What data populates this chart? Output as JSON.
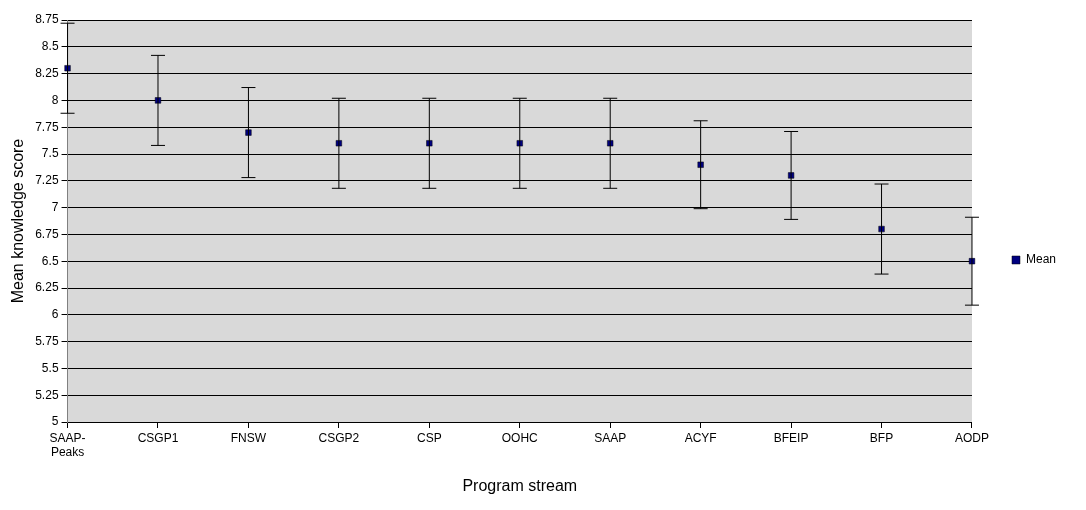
{
  "chart_data": {
    "type": "scatter",
    "xlabel": "Program stream",
    "ylabel": "Mean knowledge score",
    "categories": [
      "SAAP-Peaks",
      "CSGP1",
      "FNSW",
      "CSGP2",
      "CSP",
      "OOHC",
      "SAAP",
      "ACYF",
      "BFEIP",
      "BFP",
      "AODP"
    ],
    "series": [
      {
        "name": "Mean",
        "color": "#000080",
        "values": [
          8.3,
          8.0,
          7.7,
          7.6,
          7.6,
          7.6,
          7.6,
          7.4,
          7.3,
          6.8,
          6.5
        ],
        "errors": [
          0.42,
          0.42,
          0.42,
          0.42,
          0.42,
          0.42,
          0.42,
          0.41,
          0.41,
          0.42,
          0.41
        ]
      }
    ],
    "ylim": [
      5,
      8.75
    ],
    "yticks": [
      5,
      5.25,
      5.5,
      5.75,
      6,
      6.25,
      6.5,
      6.75,
      7,
      7.25,
      7.5,
      7.75,
      8,
      8.25,
      8.5,
      8.75
    ],
    "grid": "y",
    "legend": "right",
    "marker": "square"
  }
}
